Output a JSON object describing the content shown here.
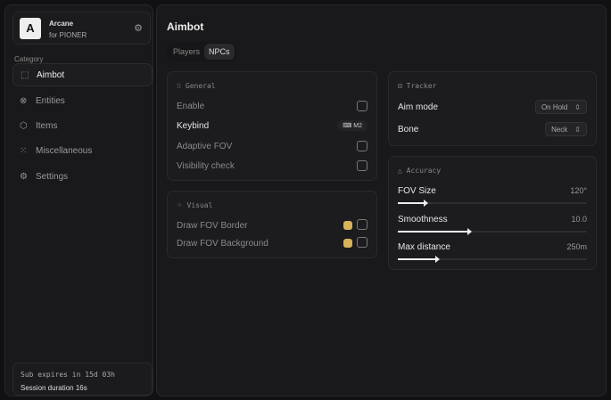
{
  "brand": {
    "logo": "A",
    "name": "Arcane",
    "subtitle": "for PIONER"
  },
  "sidebar": {
    "category_label": "Category",
    "items": [
      {
        "label": "Aimbot",
        "icon": "crosshair-icon",
        "glyph": "⬚"
      },
      {
        "label": "Entities",
        "icon": "entities-icon",
        "glyph": "⊗"
      },
      {
        "label": "Items",
        "icon": "cube-icon",
        "glyph": "⬡"
      },
      {
        "label": "Miscellaneous",
        "icon": "grid-icon",
        "glyph": "⁙"
      },
      {
        "label": "Settings",
        "icon": "gear-icon",
        "glyph": "⚙"
      }
    ],
    "active": "Aimbot"
  },
  "footer": {
    "sub": "Sub expires in 15d 03h",
    "session": "Session duration 16s"
  },
  "main": {
    "title": "Aimbot",
    "tabs": [
      "Players",
      "NPCs"
    ],
    "active_tab": "NPCs"
  },
  "general": {
    "title": "General",
    "enable": "Enable",
    "keybind": "Keybind",
    "keybind_value": "M2",
    "adaptive_fov": "Adaptive FOV",
    "visibility_check": "Visibility check"
  },
  "visual": {
    "title": "Visual",
    "border": "Draw FOV Border",
    "background": "Draw FOV Background",
    "color": "#d9b25a"
  },
  "tracker": {
    "title": "Tracker",
    "aim_mode": "Aim mode",
    "aim_mode_value": "On Hold",
    "bone": "Bone",
    "bone_value": "Neck"
  },
  "accuracy": {
    "title": "Accuracy",
    "sliders": [
      {
        "label": "FOV Size",
        "value": "120°",
        "fraction": 0.15
      },
      {
        "label": "Smoothness",
        "value": "10.0",
        "fraction": 0.38
      },
      {
        "label": "Max distance",
        "value": "250m",
        "fraction": 0.21
      }
    ]
  }
}
